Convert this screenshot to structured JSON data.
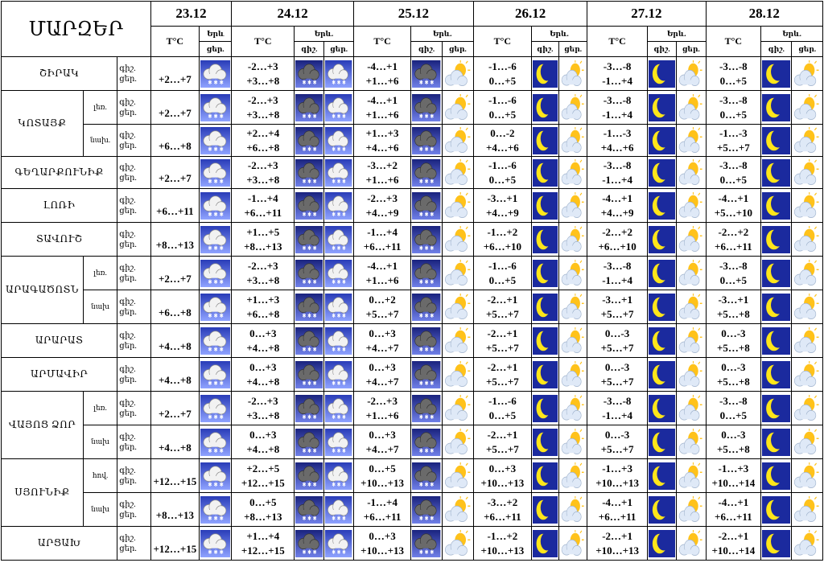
{
  "header": {
    "title": "ՄԱՐԶԵՐ",
    "dates": [
      "23.12",
      "24.12",
      "25.12",
      "26.12",
      "27.12",
      "28.12"
    ],
    "temp_label": "T°C",
    "weather_label": "Երև.",
    "weather_label_short": "Երև",
    "day_label": "ցեր.",
    "night_label": "գիշ.",
    "sub_highland": "լեռ.",
    "sub_lowland": "նախ.",
    "sub_lowland2": "նախ",
    "sub_plain": "հով."
  },
  "rows": [
    {
      "region": "ՇԻՐԱԿ",
      "sub": "",
      "night": "գիշ.",
      "day": "ցեր.",
      "d1": "+2…+7",
      "d2n": "-2…+3",
      "d2d": "+3…+8",
      "d3n": "-4…+1",
      "d3d": "+1…+6",
      "d4n": "-1…-6",
      "d4d": "0…+5",
      "d5n": "-3…-8",
      "d5d": "-1…+4",
      "d6n": "-3…-8",
      "d6d": "0…+5"
    },
    {
      "region": "ԿՈՏԱՅՔ",
      "sub": "լեռ.",
      "night": "գիշ.",
      "day": "ցեր.",
      "d1": "+2…+7",
      "d2n": "-2…+3",
      "d2d": "+3…+8",
      "d3n": "-4…+1",
      "d3d": "+1…+6",
      "d4n": "-1…-6",
      "d4d": "0…+5",
      "d5n": "-3…-8",
      "d5d": "-1…+4",
      "d6n": "-3…-8",
      "d6d": "0…+5"
    },
    {
      "region": "",
      "sub": "նախ.",
      "night": "գիշ.",
      "day": "ցեր.",
      "d1": "+6…+8",
      "d2n": "+2…+4",
      "d2d": "+6…+8",
      "d3n": "+1…+3",
      "d3d": "+4…+6",
      "d4n": "0…-2",
      "d4d": "+4…+6",
      "d5n": "-1…-3",
      "d5d": "+4…+6",
      "d6n": "-1…-3",
      "d6d": "+5…+7"
    },
    {
      "region": "ԳԵՂԱՐՔՈՒՆԻՔ",
      "sub": "",
      "night": "գիշ.",
      "day": "ցեր.",
      "d1": "+2…+7",
      "d2n": "-2…+3",
      "d2d": "+3…+8",
      "d3n": "-3…+2",
      "d3d": "+1…+6",
      "d4n": "-1…-6",
      "d4d": "0…+5",
      "d5n": "-3…-8",
      "d5d": "-1…+4",
      "d6n": "-3…-8",
      "d6d": "0…+5"
    },
    {
      "region": "ԼՈՌԻ",
      "sub": "",
      "night": "գիշ.",
      "day": "ցեր.",
      "d1": "+6…+11",
      "d2n": "-1…+4",
      "d2d": "+6…+11",
      "d3n": "-2…+3",
      "d3d": "+4…+9",
      "d4n": "-3…+1",
      "d4d": "+4…+9",
      "d5n": "-4…+1",
      "d5d": "+4…+9",
      "d6n": "-4…+1",
      "d6d": "+5…+10"
    },
    {
      "region": "ՏԱՎՈՒՇ",
      "sub": "",
      "night": "գիշ.",
      "day": "ցեր.",
      "d1": "+8…+13",
      "d2n": "+1…+5",
      "d2d": "+8…+13",
      "d3n": "-1…+4",
      "d3d": "+6…+11",
      "d4n": "-1…+2",
      "d4d": "+6…+10",
      "d5n": "-2…+2",
      "d5d": "+6…+10",
      "d6n": "-2…+2",
      "d6d": "+6…+11"
    },
    {
      "region": "ԱՐԱԳԱԾՈՏՆ",
      "sub": "լեռ.",
      "night": "գիշ.",
      "day": "ցեր.",
      "d1": "+2…+7",
      "d2n": "-2…+3",
      "d2d": "+3…+8",
      "d3n": "-4…+1",
      "d3d": "+1…+6",
      "d4n": "-1…-6",
      "d4d": "0…+5",
      "d5n": "-3…-8",
      "d5d": "-1…+4",
      "d6n": "-3…-8",
      "d6d": "0…+5"
    },
    {
      "region": "",
      "sub": "նախ",
      "night": "գիշ.",
      "day": "ցեր.",
      "d1": "+6…+8",
      "d2n": "+1…+3",
      "d2d": "+6…+8",
      "d3n": "0…+2",
      "d3d": "+5…+7",
      "d4n": "-2…+1",
      "d4d": "+5…+7",
      "d5n": "-3…+1",
      "d5d": "+5…+7",
      "d6n": "-3…+1",
      "d6d": "+5…+8"
    },
    {
      "region": "ԱՐԱՐԱՏ",
      "sub": "",
      "night": "գիշ.",
      "day": "ցեր.",
      "d1": "+4…+8",
      "d2n": "0…+3",
      "d2d": "+4…+8",
      "d3n": "0…+3",
      "d3d": "+4…+7",
      "d4n": "-2…+1",
      "d4d": "+5…+7",
      "d5n": "0…-3",
      "d5d": "+5…+7",
      "d6n": "0…-3",
      "d6d": "+5…+8"
    },
    {
      "region": "ԱՐՄԱՎԻՐ",
      "sub": "",
      "night": "գիշ.",
      "day": "ցեր.",
      "d1": "+4…+8",
      "d2n": "0…+3",
      "d2d": "+4…+8",
      "d3n": "0…+3",
      "d3d": "+4…+7",
      "d4n": "-2…+1",
      "d4d": "+5…+7",
      "d5n": "0…-3",
      "d5d": "+5…+7",
      "d6n": "0…-3",
      "d6d": "+5…+8"
    },
    {
      "region": "ՎԱՅՈՑ ՁՈՐ",
      "sub": "լեռ.",
      "night": "գիշ.",
      "day": "ցեր.",
      "d1": "+2…+7",
      "d2n": "-2…+3",
      "d2d": "+3…+8",
      "d3n": "-2…+3",
      "d3d": "+1…+6",
      "d4n": "-1…-6",
      "d4d": "0…+5",
      "d5n": "-3…-8",
      "d5d": "-1…+4",
      "d6n": "-3…-8",
      "d6d": "0…+5"
    },
    {
      "region": "",
      "sub": "նախ",
      "night": "գիշ.",
      "day": "ցեր.",
      "d1": "+4…+8",
      "d2n": "0…+3",
      "d2d": "+4…+8",
      "d3n": "0…+3",
      "d3d": "+4…+7",
      "d4n": "-2…+1",
      "d4d": "+5…+7",
      "d5n": "0…-3",
      "d5d": "+5…+7",
      "d6n": "0…-3",
      "d6d": "+5…+8"
    },
    {
      "region": "ՍՅՈՒՆԻՔ",
      "sub": "հով.",
      "night": "գիշ.",
      "day": "ցեր.",
      "d1": "+12…+15",
      "d2n": "+2…+5",
      "d2d": "+12…+15",
      "d3n": "0…+5",
      "d3d": "+10…+13",
      "d4n": "0…+3",
      "d4d": "+10…+13",
      "d5n": "-1…+3",
      "d5d": "+10…+13",
      "d6n": "-1…+3",
      "d6d": "+10…+14"
    },
    {
      "region": "",
      "sub": "նախ",
      "night": "գիշ.",
      "day": "ցեր.",
      "d1": "+8…+13",
      "d2n": "0…+5",
      "d2d": "+8…+13",
      "d3n": "-1…+4",
      "d3d": "+6…+11",
      "d4n": "-3…+2",
      "d4d": "+6…+11",
      "d5n": "-4…+1",
      "d5d": "+6…+11",
      "d6n": "-4…+1",
      "d6d": "+6…+11"
    },
    {
      "region": "ԱՐՑԱԽ",
      "sub": "",
      "night": "գիշ.",
      "day": "ցեր.",
      "d1": "+12…+15",
      "d2n": "+1…+4",
      "d2d": "+12…+15",
      "d3n": "0…+3",
      "d3d": "+10…+13",
      "d4n": "-1…+2",
      "d4d": "+10…+13",
      "d5n": "-2…+1",
      "d5d": "+10…+13",
      "d6n": "-2…+1",
      "d6d": "+10…+14"
    }
  ],
  "icons": {
    "d1": "snow-cloud-icon",
    "d2_night": "snow-dark-cloud-icon",
    "d2_day": "snow-cloud-icon",
    "d3_night": "snow-dark-cloud-icon",
    "d3_day": "sun-behind-cloud-icon",
    "night_moon": "moon-icon",
    "day_partly": "sun-behind-cloud-icon"
  },
  "colors": {
    "sky_blue": "#3a52c4",
    "dark_sky": "#1e2a8c",
    "moon": "#ffe61a",
    "sun": "#ffb300"
  }
}
